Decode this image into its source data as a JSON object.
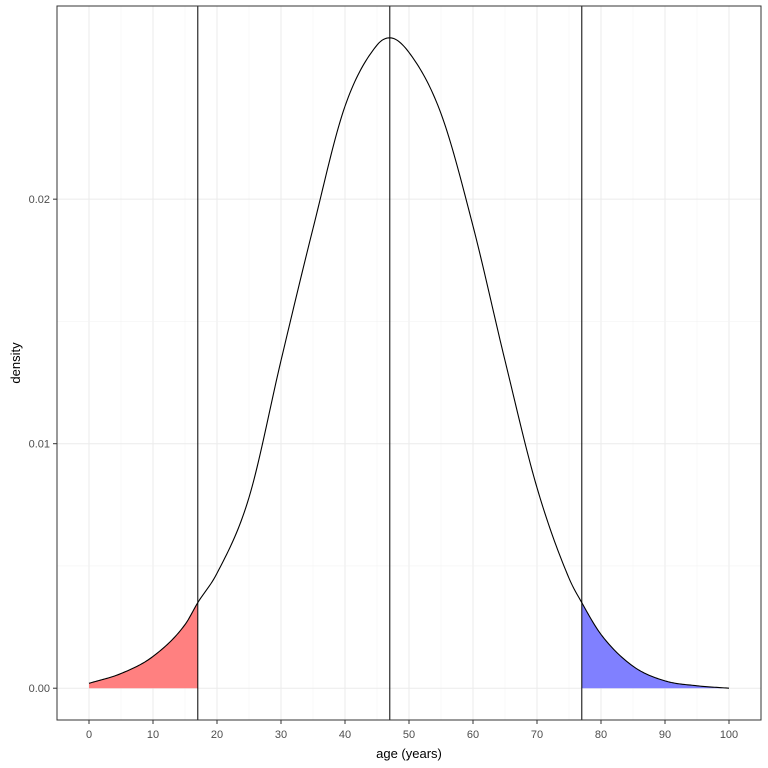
{
  "chart_data": {
    "type": "area",
    "xlabel": "age (years)",
    "ylabel": "density",
    "xlim": [
      -5,
      105
    ],
    "ylim": [
      -0.0013,
      0.0279
    ],
    "x_ticks": [
      0,
      10,
      20,
      30,
      40,
      50,
      60,
      70,
      80,
      90,
      100
    ],
    "x_tick_labels": [
      "0",
      "10",
      "20",
      "30",
      "40",
      "50",
      "60",
      "70",
      "80",
      "90",
      "100"
    ],
    "y_ticks": [
      0,
      0.01,
      0.02
    ],
    "y_tick_labels": [
      "0.00",
      "0.01",
      "0.02"
    ],
    "grid": true,
    "series": [
      {
        "type": "line",
        "x": [
          0,
          5,
          10,
          15,
          17,
          20,
          25,
          30,
          35,
          40,
          45,
          47,
          50,
          55,
          60,
          65,
          70,
          75,
          77,
          80,
          85,
          90,
          95,
          100
        ],
        "y": [
          0.0002,
          0.0006,
          0.0013,
          0.0026,
          0.0035,
          0.0047,
          0.0078,
          0.0134,
          0.0188,
          0.0238,
          0.0263,
          0.0266,
          0.026,
          0.0235,
          0.0189,
          0.0134,
          0.0082,
          0.0045,
          0.0035,
          0.0022,
          0.0009,
          0.0003,
          0.0001,
          0.0
        ],
        "color": "#000000"
      }
    ],
    "shaded_regions": [
      {
        "from": 0,
        "to": 17,
        "color": "#ff8080"
      },
      {
        "from": 77,
        "to": 100,
        "color": "#8080ff"
      }
    ],
    "vlines": [
      17,
      47,
      77
    ]
  }
}
